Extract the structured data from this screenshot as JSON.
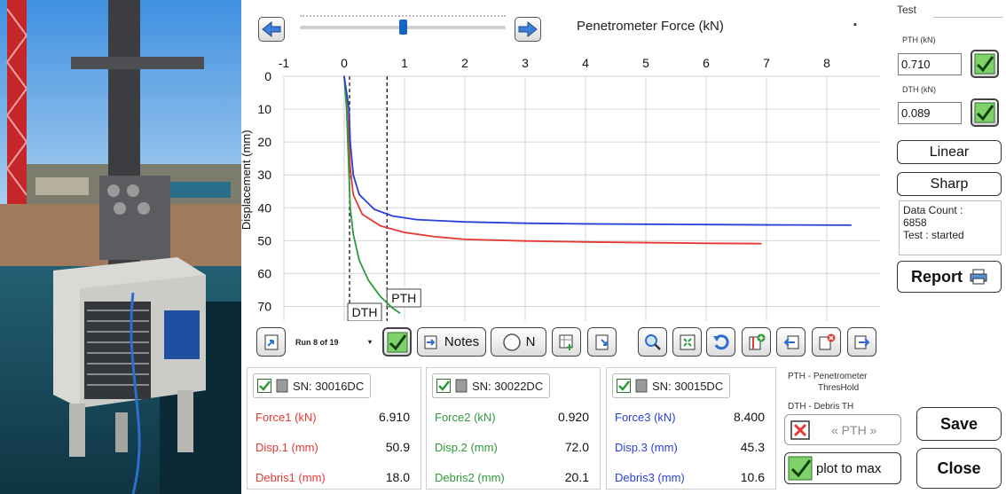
{
  "header": {
    "chart_title": "Penetrometer Force (kN)",
    "dropdown_glyph": "▪"
  },
  "slider": {
    "value_fraction": 0.5
  },
  "right_panel": {
    "test_label": "Test",
    "pth_label": "PTH (kN)",
    "pth_value": "0.710",
    "dth_label": "DTH (kN)",
    "dth_value": "0.089",
    "linear_label": "Linear",
    "sharp_label": "Sharp",
    "data_count_label": "Data Count :",
    "data_count_value": "6858",
    "test_status": "Test :   started",
    "report_label": "Report"
  },
  "toolbar": {
    "run_label": "Run 8 of 19",
    "notes_label": "Notes",
    "n_label": "N"
  },
  "sensors": [
    {
      "sn": "SN: 30016DC",
      "color": "#e53935",
      "rows": [
        {
          "label": "Force1  (kN)",
          "value": "6.910"
        },
        {
          "label": "Disp.1 (mm)",
          "value": "50.9"
        },
        {
          "label": "Debris1 (mm)",
          "value": "18.0"
        }
      ]
    },
    {
      "sn": "SN: 30022DC",
      "color": "#2e9a3a",
      "rows": [
        {
          "label": "Force2  (kN)",
          "value": "0.920"
        },
        {
          "label": "Disp.2 (mm)",
          "value": "72.0"
        },
        {
          "label": "Debris2 (mm)",
          "value": "20.1"
        }
      ]
    },
    {
      "sn": "SN: 30015DC",
      "color": "#2a3fd6",
      "rows": [
        {
          "label": "Force3  (kN)",
          "value": "8.400"
        },
        {
          "label": "Disp.3 (mm)",
          "value": "45.3"
        },
        {
          "label": "Debris3 (mm)",
          "value": "10.6"
        }
      ]
    }
  ],
  "legend": {
    "pth_line1": "PTH - Penetrometer",
    "pth_line2": "ThresHold",
    "dth_line": "DTH - Debris TH"
  },
  "controls": {
    "pth_toggle_label": "« PTH »",
    "plot_to_max_label": "plot to max",
    "save_label": "Save",
    "close_label": "Close"
  },
  "chart_data": {
    "type": "line",
    "title": "Penetrometer Force (kN)",
    "xlabel": "",
    "ylabel": "Displacement (mm)",
    "xlim": [
      -1,
      9
    ],
    "ylim": [
      0,
      75
    ],
    "x_ticks": [
      -1,
      0,
      1,
      2,
      3,
      4,
      5,
      6,
      7,
      8
    ],
    "y_ticks": [
      0,
      10,
      20,
      30,
      40,
      50,
      60,
      70
    ],
    "y_inverted": true,
    "grid": true,
    "thresholds": [
      {
        "name": "DTH",
        "x": 0.089
      },
      {
        "name": "PTH",
        "x": 0.71
      }
    ],
    "series": [
      {
        "color": "#e53935",
        "x": [
          0.0,
          0.05,
          0.08,
          0.1,
          0.15,
          0.3,
          0.6,
          1.0,
          1.5,
          2.0,
          3.0,
          4.0,
          5.0,
          6.0,
          6.91
        ],
        "y": [
          0,
          10,
          20,
          28,
          36,
          42,
          45.5,
          47.5,
          48.8,
          49.6,
          50.1,
          50.4,
          50.6,
          50.8,
          50.9
        ]
      },
      {
        "color": "#2e9a3a",
        "x": [
          0.0,
          0.04,
          0.06,
          0.08,
          0.1,
          0.15,
          0.25,
          0.4,
          0.6,
          0.8,
          0.92
        ],
        "y": [
          0,
          10,
          20,
          30,
          40,
          48,
          56,
          62,
          67,
          70.5,
          72.0
        ]
      },
      {
        "color": "#2a3fd6",
        "x": [
          0.0,
          0.08,
          0.1,
          0.15,
          0.25,
          0.5,
          0.8,
          1.2,
          2.0,
          3.0,
          4.0,
          5.0,
          6.0,
          7.0,
          8.4
        ],
        "y": [
          0,
          10,
          20,
          30,
          36,
          40.5,
          42.5,
          43.6,
          44.3,
          44.7,
          44.9,
          45.0,
          45.1,
          45.2,
          45.3
        ]
      }
    ]
  }
}
